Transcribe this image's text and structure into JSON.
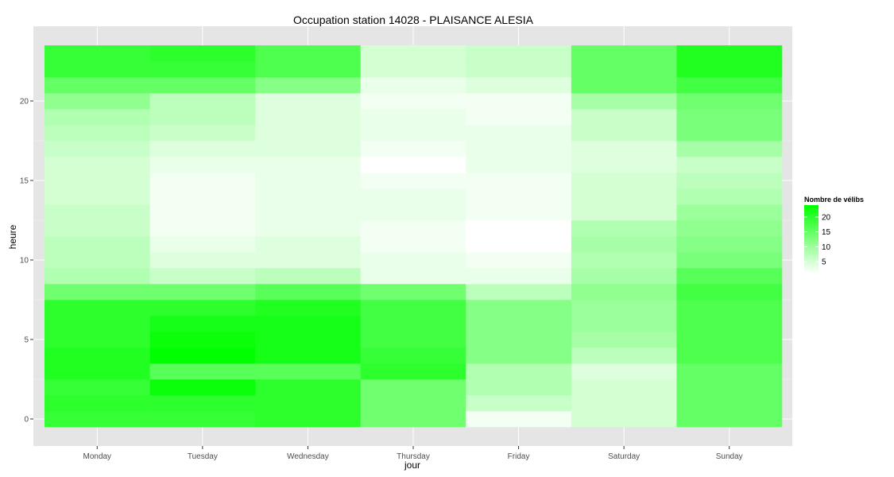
{
  "chart_data": {
    "type": "heatmap",
    "title": "Occupation station 14028 - PLAISANCE ALESIA",
    "xlabel": "jour",
    "ylabel": "heure",
    "days": [
      "Monday",
      "Tuesday",
      "Wednesday",
      "Thursday",
      "Friday",
      "Saturday",
      "Sunday"
    ],
    "hours": [
      0,
      1,
      2,
      3,
      4,
      5,
      6,
      7,
      8,
      9,
      10,
      11,
      12,
      13,
      14,
      15,
      16,
      17,
      18,
      19,
      20,
      21,
      22,
      23
    ],
    "y_ticks": [
      0,
      5,
      10,
      15,
      20
    ],
    "ylim": [
      -0.5,
      23.5
    ],
    "color_min": 1,
    "color_max": 24,
    "color_low": "#ffffff",
    "color_high": "#00ff00",
    "background": "#e5e5e5",
    "grid_color": "#ffffff",
    "values": [
      [
        19,
        20,
        19,
        21,
        21,
        20,
        20,
        20,
        14,
        8,
        7,
        7,
        6,
        6,
        5,
        5,
        5,
        6,
        7,
        8,
        11,
        15,
        19,
        19
      ],
      [
        19,
        20,
        23,
        16,
        24,
        23,
        22,
        20,
        14,
        6,
        4,
        3,
        2,
        2,
        2,
        2,
        3,
        4,
        6,
        7,
        7,
        15,
        19,
        20
      ],
      [
        20,
        20,
        20,
        16,
        22,
        22,
        22,
        21,
        16,
        7,
        4,
        4,
        3,
        3,
        3,
        3,
        3,
        4,
        4,
        4,
        4,
        12,
        17,
        17
      ],
      [
        14,
        14,
        14,
        20,
        19,
        18,
        18,
        18,
        14,
        3,
        3,
        2,
        2,
        3,
        3,
        2,
        1,
        2,
        3,
        3,
        2,
        3,
        5,
        5
      ],
      [
        2,
        6,
        8,
        8,
        12,
        12,
        12,
        12,
        7,
        3,
        2,
        1,
        1,
        2,
        2,
        2,
        3,
        3,
        3,
        2,
        2,
        4,
        6,
        6
      ],
      [
        5,
        5,
        5,
        4,
        7,
        9,
        10,
        10,
        11,
        9,
        8,
        9,
        8,
        5,
        5,
        5,
        4,
        4,
        6,
        6,
        9,
        15,
        15,
        15
      ],
      [
        15,
        15,
        15,
        15,
        17,
        17,
        17,
        17,
        18,
        16,
        13,
        12,
        11,
        10,
        8,
        7,
        6,
        9,
        13,
        13,
        14,
        18,
        21,
        21
      ]
    ],
    "legend": {
      "title": "Nombre de vélibs",
      "breaks": [
        5,
        10,
        15,
        20
      ],
      "position": "right"
    }
  }
}
